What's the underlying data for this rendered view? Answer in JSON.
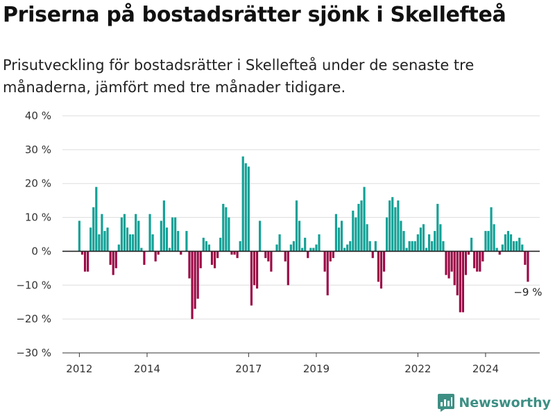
{
  "title": "Priserna på bostadsrätter sjönk i Skellefteå",
  "subtitle": "Prisutveckling för bostadsrätter i Skellefteå under de senaste tre månaderna, jämfört med tre månader tidigare.",
  "brand": {
    "name": "Newsworthy",
    "icon": "newsworthy-logo-icon",
    "color": "#3d8f84"
  },
  "chart_data": {
    "type": "bar",
    "y_ticks": [
      "40 %",
      "30 %",
      "20 %",
      "10 %",
      "0 %",
      "−10 %",
      "−20 %",
      "−30 %"
    ],
    "y_tick_values": [
      40,
      30,
      20,
      10,
      0,
      -10,
      -20,
      -30
    ],
    "ylim": [
      -30,
      40
    ],
    "x_ticks": [
      {
        "label": "2012",
        "x": 2012.0
      },
      {
        "label": "2014",
        "x": 2014.0
      },
      {
        "label": "2017",
        "x": 2017.0
      },
      {
        "label": "2019",
        "x": 2019.0
      },
      {
        "label": "2022",
        "x": 2022.0
      },
      {
        "label": "2024",
        "x": 2024.0
      }
    ],
    "xlim": [
      2011.5,
      2025.6
    ],
    "x_start": 2012.0,
    "x_step": 0.083333,
    "grid": true,
    "positive_color": "#13a196",
    "negative_color": "#9b0a46",
    "annotation": {
      "text": "−9 %",
      "x": 2025.25,
      "y": -9
    },
    "values": [
      9,
      -1,
      -6,
      -6,
      7,
      13,
      19,
      5,
      11,
      6,
      7,
      -4,
      -7,
      -5,
      2,
      10,
      11,
      7,
      5,
      5,
      11,
      9,
      1,
      -4,
      0,
      11,
      5,
      -3,
      -1,
      9,
      15,
      7,
      1,
      10,
      10,
      6,
      -1,
      0,
      6,
      -8,
      -20,
      -17,
      -14,
      -5,
      4,
      3,
      2,
      -4,
      -5,
      -2,
      4,
      14,
      13,
      10,
      -1,
      -1,
      -2,
      3,
      28,
      26,
      25,
      -16,
      -10,
      -11,
      9,
      0,
      -2,
      -3,
      -6,
      0,
      2,
      5,
      0,
      -3,
      -10,
      2,
      3,
      15,
      9,
      1,
      4,
      -2,
      1,
      1,
      2,
      5,
      0,
      -6,
      -13,
      -3,
      -2,
      11,
      7,
      9,
      1,
      2,
      3,
      12,
      10,
      14,
      15,
      19,
      8,
      3,
      -2,
      3,
      -9,
      -11,
      -6,
      10,
      15,
      16,
      13,
      15,
      9,
      6,
      1,
      3,
      3,
      3,
      5,
      7,
      8,
      1,
      5,
      3,
      6,
      14,
      8,
      3,
      -7,
      -8,
      -6,
      -10,
      -13,
      -18,
      -18,
      -7,
      -1,
      4,
      -5,
      -6,
      -6,
      -3,
      6,
      6,
      13,
      8,
      1,
      -1,
      2,
      5,
      6,
      5,
      3,
      3,
      4,
      2,
      -4,
      -9
    ]
  }
}
